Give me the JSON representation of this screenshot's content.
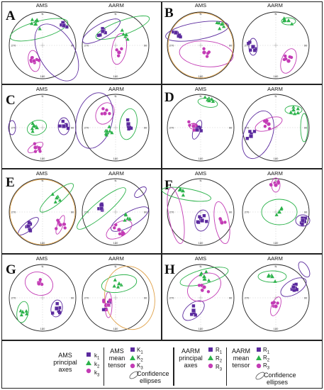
{
  "panels": [
    {
      "letter": "A",
      "left_title": "AMS",
      "right_title": "AARM"
    },
    {
      "letter": "B",
      "left_title": "AMS",
      "right_title": "AARM"
    },
    {
      "letter": "C",
      "left_title": "AMS",
      "right_title": "AARM"
    },
    {
      "letter": "D",
      "left_title": "AMS",
      "right_title": "AARM"
    },
    {
      "letter": "E",
      "left_title": "AMS",
      "right_title": "AARM"
    },
    {
      "letter": "F",
      "left_title": "AMS",
      "right_title": "AARM"
    },
    {
      "letter": "G",
      "left_title": "AMS",
      "right_title": "AARM"
    },
    {
      "letter": "H",
      "left_title": "AMS",
      "right_title": "AARM"
    }
  ],
  "ticks": {
    "n": "N",
    "e": "90",
    "s": "180",
    "w": "270"
  },
  "legend": {
    "ams_axes": {
      "line1": "AMS",
      "line2": "principal",
      "line3": "axes",
      "k1": "k",
      "k1s": "1",
      "k2": "k",
      "k2s": "2",
      "k3": "k",
      "k3s": "3"
    },
    "ams_mean": {
      "line1": "AMS",
      "line2": "mean",
      "line3": "tensor",
      "K1": "K",
      "K1s": "1",
      "K2": "K",
      "K2s": "2",
      "K3": "K",
      "K3s": "3",
      "conf1": "Confidence",
      "conf2": "ellipses"
    },
    "aarm_axes": {
      "line1": "AARM",
      "line2": "principal",
      "line3": "axes",
      "R1": "R",
      "R1s": "1",
      "R2": "R",
      "R2s": "2",
      "R3": "R",
      "R3s": "3"
    },
    "aarm_mean": {
      "line1": "AARM",
      "line2": "mean",
      "line3": "tensor",
      "R1": "R",
      "R1s": "1",
      "R2": "R",
      "R2s": "2",
      "R3": "R",
      "R3s": "3",
      "conf1": "Confidence",
      "conf2": "ellipses"
    }
  },
  "colors": {
    "k1": "#5b2a9e",
    "k2": "#2bb24a",
    "k3": "#c33bb5",
    "ellipse_outer": "#e0a24a",
    "frame": "#222222"
  }
}
